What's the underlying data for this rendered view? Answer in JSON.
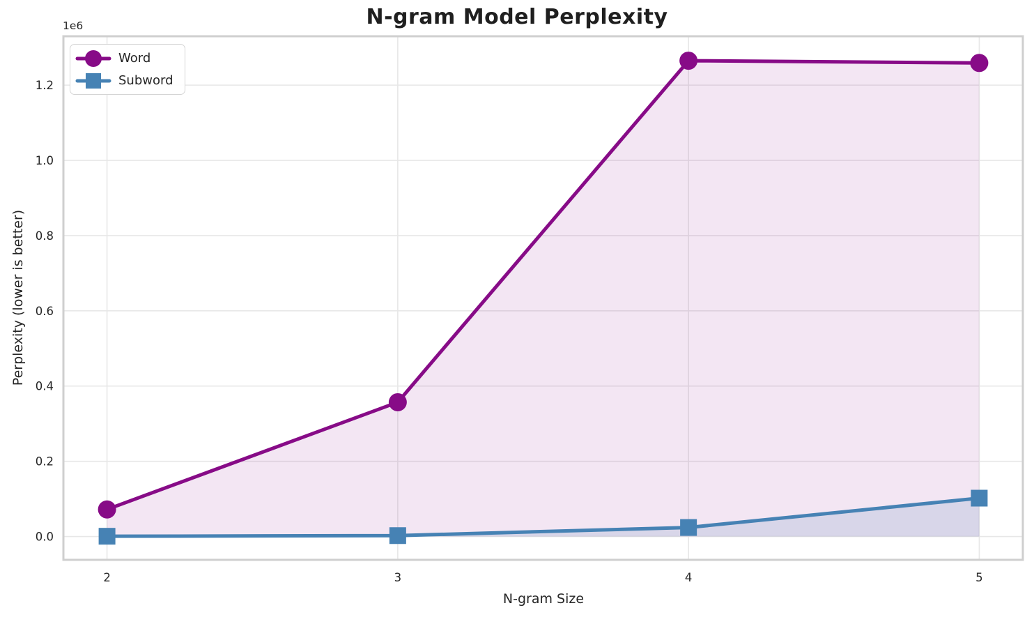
{
  "chart_data": {
    "type": "line",
    "title": "N-gram Model Perplexity",
    "xlabel": "N-gram Size",
    "ylabel": "Perplexity (lower is better)",
    "offset_text": "1e6",
    "x": [
      2,
      3,
      4,
      5
    ],
    "series": [
      {
        "name": "Word",
        "marker": "circle",
        "color": "#870b87",
        "fill_opacity": 0.1,
        "values": [
          72000,
          357000,
          1265000,
          1259000
        ]
      },
      {
        "name": "Subword",
        "marker": "square",
        "color": "#4682b4",
        "fill_opacity": 0.15,
        "values": [
          700,
          2400,
          24000,
          102000
        ]
      }
    ],
    "fill_to_baseline": 0,
    "xlim": [
      1.85,
      5.15
    ],
    "ylim": [
      -62000,
      1330000
    ],
    "xticks": {
      "values": [
        2,
        3,
        4,
        5
      ],
      "labels": [
        "2",
        "3",
        "4",
        "5"
      ]
    },
    "yticks": {
      "values": [
        0,
        200000,
        400000,
        600000,
        800000,
        1000000,
        1200000
      ],
      "labels": [
        "0.0",
        "0.2",
        "0.4",
        "0.6",
        "0.8",
        "1.0",
        "1.2"
      ]
    },
    "grid": true,
    "legend_position": "upper left",
    "style": {
      "grid_color": "#e7e7e7",
      "spine_color": "#cfcfcf",
      "text_color": "#262626",
      "title_color": "#1f1f1f",
      "background": "#ffffff",
      "legend_border": "#d5d5d5"
    }
  }
}
